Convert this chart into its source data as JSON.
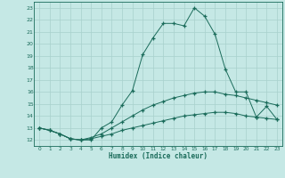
{
  "xlabel": "Humidex (Indice chaleur)",
  "background_color": "#c5e8e5",
  "grid_color": "#a8d0cc",
  "line_color": "#1a6b5a",
  "xlim": [
    -0.5,
    23.5
  ],
  "ylim": [
    11.5,
    23.5
  ],
  "xticks": [
    0,
    1,
    2,
    3,
    4,
    5,
    6,
    7,
    8,
    9,
    10,
    11,
    12,
    13,
    14,
    15,
    16,
    17,
    18,
    19,
    20,
    21,
    22,
    23
  ],
  "yticks": [
    12,
    13,
    14,
    15,
    16,
    17,
    18,
    19,
    20,
    21,
    22,
    23
  ],
  "line1_x": [
    0,
    1,
    2,
    3,
    4,
    5,
    6,
    7,
    8,
    9,
    10,
    11,
    12,
    13,
    14,
    15,
    16,
    17,
    18,
    19,
    20,
    21,
    22,
    23
  ],
  "line1_y": [
    13,
    12.8,
    12.5,
    12.1,
    12.0,
    12.0,
    13.0,
    13.5,
    14.9,
    16.1,
    19.1,
    20.5,
    21.7,
    21.7,
    21.5,
    23.0,
    22.3,
    20.8,
    17.9,
    16.0,
    16.0,
    13.9,
    14.8,
    13.7
  ],
  "line2_x": [
    0,
    1,
    2,
    3,
    4,
    5,
    6,
    7,
    8,
    9,
    10,
    11,
    12,
    13,
    14,
    15,
    16,
    17,
    18,
    19,
    20,
    21,
    22,
    23
  ],
  "line2_y": [
    13.0,
    12.8,
    12.5,
    12.1,
    12.0,
    12.2,
    12.5,
    13.0,
    13.5,
    14.0,
    14.5,
    14.9,
    15.2,
    15.5,
    15.7,
    15.9,
    16.0,
    16.0,
    15.8,
    15.7,
    15.5,
    15.3,
    15.1,
    14.9
  ],
  "line3_x": [
    0,
    1,
    2,
    3,
    4,
    5,
    6,
    7,
    8,
    9,
    10,
    11,
    12,
    13,
    14,
    15,
    16,
    17,
    18,
    19,
    20,
    21,
    22,
    23
  ],
  "line3_y": [
    13.0,
    12.8,
    12.5,
    12.1,
    12.0,
    12.1,
    12.3,
    12.5,
    12.8,
    13.0,
    13.2,
    13.4,
    13.6,
    13.8,
    14.0,
    14.1,
    14.2,
    14.3,
    14.3,
    14.2,
    14.0,
    13.9,
    13.8,
    13.7
  ]
}
